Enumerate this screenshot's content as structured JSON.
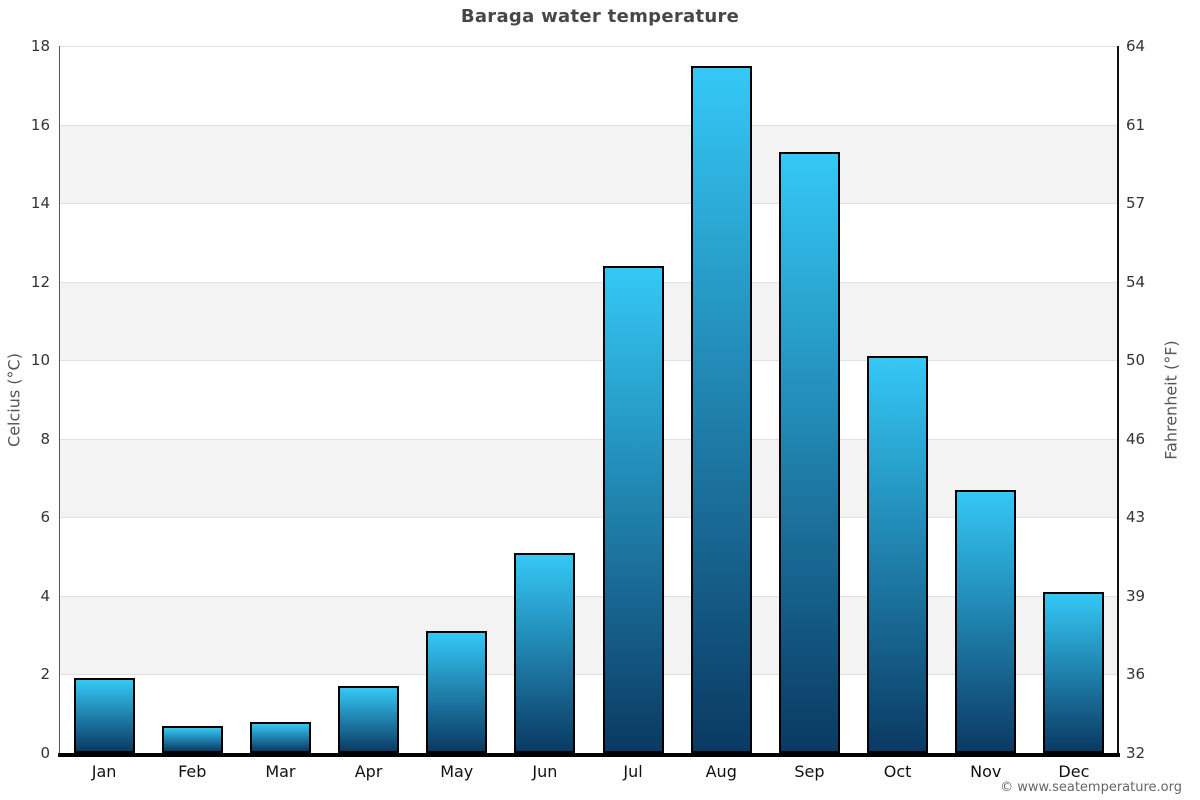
{
  "page": {
    "copyright": "© www.seatemperature.org"
  },
  "chart_data": {
    "type": "bar",
    "title": "Baraga water temperature",
    "categories": [
      "Jan",
      "Feb",
      "Mar",
      "Apr",
      "May",
      "Jun",
      "Jul",
      "Aug",
      "Sep",
      "Oct",
      "Nov",
      "Dec"
    ],
    "values": [
      1.9,
      0.7,
      0.8,
      1.7,
      3.1,
      5.1,
      12.4,
      17.5,
      15.3,
      10.1,
      6.7,
      4.1
    ],
    "xlabel": "",
    "ylabel_left": "Celcius (°C)",
    "ylabel_right": "Fahrenheit (°F)",
    "ylim": [
      0,
      18
    ],
    "ytick_step": 2,
    "yticks_left": [
      "0",
      "2",
      "4",
      "6",
      "8",
      "10",
      "12",
      "14",
      "16",
      "18"
    ],
    "yticks_right": [
      "32",
      "36",
      "39",
      "43",
      "46",
      "50",
      "54",
      "57",
      "61",
      "64"
    ],
    "legend": "none",
    "grid": "alternating horizontal gray bands with thin gridlines every 2°C",
    "colors": {
      "bar_gradient_top": "#35c8f6",
      "bar_gradient_bottom": "#0a3a63",
      "bar_border": "#000000",
      "band_gray": "#f3f3f3",
      "gridline": "#e0e0e0",
      "left_axis_line": "#555555",
      "right_axis_line": "#111111",
      "baseline": "#000000",
      "title_color": "#474747",
      "axis_title_color": "#555555",
      "tick_label_color": "#333333",
      "month_label_color": "#111111",
      "copyright_color": "#666666",
      "background": "#ffffff"
    }
  }
}
